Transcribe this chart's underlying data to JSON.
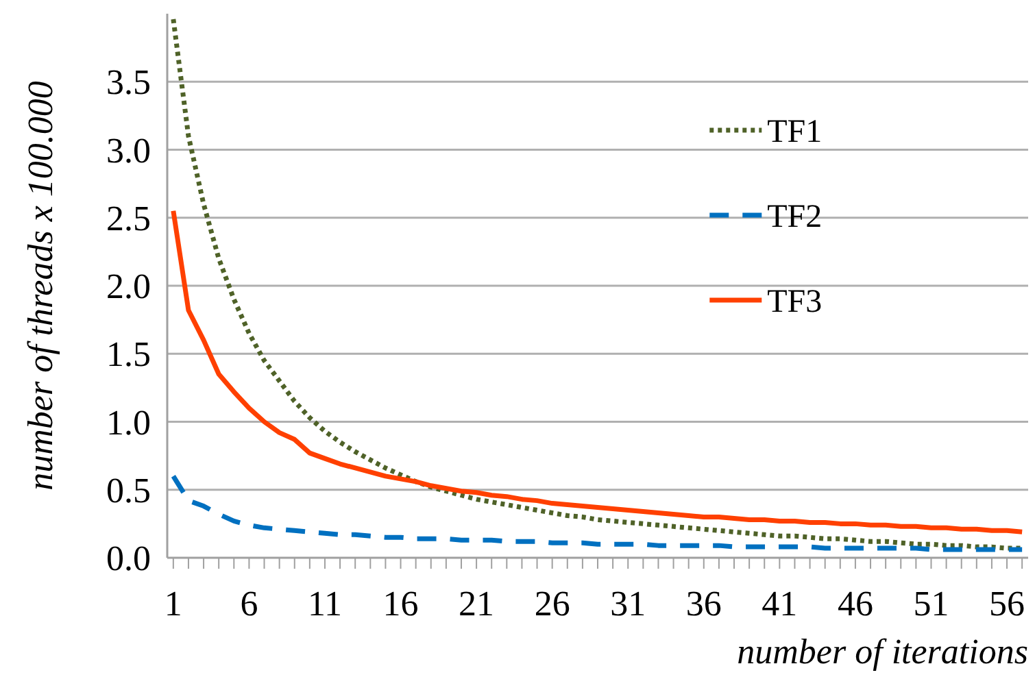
{
  "chart_data": {
    "type": "line",
    "xlabel": "number of iterations",
    "ylabel": "number of threads  x 100.000",
    "x": [
      1,
      2,
      3,
      4,
      5,
      6,
      7,
      8,
      9,
      10,
      11,
      12,
      13,
      14,
      15,
      16,
      17,
      18,
      19,
      20,
      21,
      22,
      23,
      24,
      25,
      26,
      27,
      28,
      29,
      30,
      31,
      32,
      33,
      34,
      35,
      36,
      37,
      38,
      39,
      40,
      41,
      42,
      43,
      44,
      45,
      46,
      47,
      48,
      49,
      50,
      51,
      52,
      53,
      54,
      55,
      56,
      57
    ],
    "xlim": [
      0.6,
      57.4
    ],
    "xticks": [
      1,
      {
        "value": 2,
        "label": null
      },
      {
        "value": 3,
        "label": null
      },
      {
        "value": 4,
        "label": null
      },
      {
        "value": 5,
        "label": null
      },
      6,
      {
        "value": 7,
        "label": null
      },
      {
        "value": 8,
        "label": null
      },
      {
        "value": 9,
        "label": null
      },
      {
        "value": 10,
        "label": null
      },
      11,
      {
        "value": 12,
        "label": null
      },
      {
        "value": 13,
        "label": null
      },
      {
        "value": 14,
        "label": null
      },
      {
        "value": 15,
        "label": null
      },
      16,
      {
        "value": 17,
        "label": null
      },
      {
        "value": 18,
        "label": null
      },
      {
        "value": 19,
        "label": null
      },
      {
        "value": 20,
        "label": null
      },
      21,
      {
        "value": 22,
        "label": null
      },
      {
        "value": 23,
        "label": null
      },
      {
        "value": 24,
        "label": null
      },
      {
        "value": 25,
        "label": null
      },
      26,
      {
        "value": 27,
        "label": null
      },
      {
        "value": 28,
        "label": null
      },
      {
        "value": 29,
        "label": null
      },
      {
        "value": 30,
        "label": null
      },
      31,
      {
        "value": 32,
        "label": null
      },
      {
        "value": 33,
        "label": null
      },
      {
        "value": 34,
        "label": null
      },
      {
        "value": 35,
        "label": null
      },
      36,
      {
        "value": 37,
        "label": null
      },
      {
        "value": 38,
        "label": null
      },
      {
        "value": 39,
        "label": null
      },
      {
        "value": 40,
        "label": null
      },
      41,
      {
        "value": 42,
        "label": null
      },
      {
        "value": 43,
        "label": null
      },
      {
        "value": 44,
        "label": null
      },
      {
        "value": 45,
        "label": null
      },
      46,
      {
        "value": 47,
        "label": null
      },
      {
        "value": 48,
        "label": null
      },
      {
        "value": 49,
        "label": null
      },
      {
        "value": 50,
        "label": null
      },
      51,
      {
        "value": 52,
        "label": null
      },
      {
        "value": 53,
        "label": null
      },
      {
        "value": 54,
        "label": null
      },
      {
        "value": 55,
        "label": null
      },
      56,
      {
        "value": 57,
        "label": null
      }
    ],
    "ylim": [
      0,
      4
    ],
    "yticks": [
      {
        "value": 0,
        "label": "0.0"
      },
      {
        "value": 0.5,
        "label": "0.5"
      },
      {
        "value": 1,
        "label": "1.0"
      },
      {
        "value": 1.5,
        "label": "1.5"
      },
      {
        "value": 2,
        "label": "2.0"
      },
      {
        "value": 2.5,
        "label": "2.5"
      },
      {
        "value": 3,
        "label": "3.0"
      },
      {
        "value": 3.5,
        "label": "3.5"
      }
    ],
    "grid": "y",
    "legend": "top right",
    "series": [
      {
        "name": "TF1",
        "color": "#4f6228",
        "line_style": "dotted",
        "values": [
          3.96,
          3.1,
          2.6,
          2.2,
          1.9,
          1.65,
          1.45,
          1.3,
          1.15,
          1.03,
          0.93,
          0.85,
          0.78,
          0.72,
          0.66,
          0.61,
          0.56,
          0.52,
          0.49,
          0.46,
          0.43,
          0.41,
          0.39,
          0.37,
          0.35,
          0.33,
          0.31,
          0.3,
          0.28,
          0.27,
          0.26,
          0.25,
          0.24,
          0.23,
          0.22,
          0.21,
          0.2,
          0.19,
          0.18,
          0.17,
          0.16,
          0.16,
          0.15,
          0.14,
          0.14,
          0.13,
          0.12,
          0.12,
          0.11,
          0.1,
          0.1,
          0.09,
          0.09,
          0.08,
          0.08,
          0.07,
          0.07
        ]
      },
      {
        "name": "TF2",
        "color": "#0070c0",
        "line_style": "dashed",
        "values": [
          0.6,
          0.42,
          0.38,
          0.32,
          0.27,
          0.24,
          0.22,
          0.21,
          0.2,
          0.19,
          0.18,
          0.17,
          0.17,
          0.16,
          0.15,
          0.15,
          0.14,
          0.14,
          0.14,
          0.13,
          0.13,
          0.13,
          0.12,
          0.12,
          0.12,
          0.11,
          0.11,
          0.11,
          0.1,
          0.1,
          0.1,
          0.1,
          0.09,
          0.09,
          0.09,
          0.09,
          0.09,
          0.08,
          0.08,
          0.08,
          0.08,
          0.08,
          0.08,
          0.07,
          0.07,
          0.07,
          0.07,
          0.07,
          0.07,
          0.07,
          0.06,
          0.06,
          0.06,
          0.06,
          0.06,
          0.06,
          0.06
        ]
      },
      {
        "name": "TF3",
        "color": "#ff4000",
        "line_style": "solid",
        "values": [
          2.55,
          1.82,
          1.6,
          1.35,
          1.22,
          1.1,
          1.0,
          0.92,
          0.87,
          0.77,
          0.73,
          0.69,
          0.66,
          0.63,
          0.6,
          0.58,
          0.56,
          0.53,
          0.51,
          0.49,
          0.48,
          0.46,
          0.45,
          0.43,
          0.42,
          0.4,
          0.39,
          0.38,
          0.37,
          0.36,
          0.35,
          0.34,
          0.33,
          0.32,
          0.31,
          0.3,
          0.3,
          0.29,
          0.28,
          0.28,
          0.27,
          0.27,
          0.26,
          0.26,
          0.25,
          0.25,
          0.24,
          0.24,
          0.23,
          0.23,
          0.22,
          0.22,
          0.21,
          0.21,
          0.2,
          0.2,
          0.19
        ]
      }
    ]
  }
}
